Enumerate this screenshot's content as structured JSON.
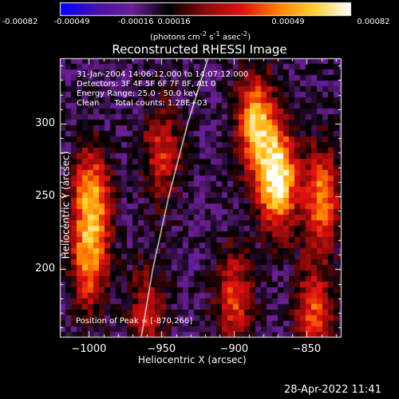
{
  "colorbar": {
    "ticks": [
      "-0.00082",
      "-0.00049",
      "-0.00016",
      "0.00016",
      "0.00049",
      "0.00082"
    ],
    "units_text": "(photons cm",
    "units_exp1": "-2",
    "units_mid": " s",
    "units_exp2": "-1",
    "units_mid2": " asec",
    "units_exp3": "-2",
    "units_end": ")"
  },
  "info": {
    "line1": "31-Jan-2004 14:06:12.000 to 14:07:12.000",
    "line2": "Detectors: 3F 4F 5F 6F 7F 8F, Att 0",
    "line3": "Energy Range: 25.0 - 50.0 keV",
    "line4": "Clean      Total counts: 1.28E+03",
    "peak": "Position of Peak = [-870,266]"
  },
  "timestamp": "28-Apr-2022 11:41",
  "chart_data": {
    "type": "heatmap",
    "title": "Reconstructed RHESSI Image",
    "xlabel": "Heliocentric X (arcsec)",
    "ylabel": "Heliocentric Y (arcsec)",
    "xlim": [
      -1020,
      -826
    ],
    "ylim": [
      153,
      345
    ],
    "xticks": [
      -1000,
      -950,
      -900,
      -850
    ],
    "yticks": [
      200,
      250,
      300
    ],
    "colorbar_range": [
      -0.00082,
      0.00082
    ],
    "peak_position": [
      -870,
      266
    ],
    "colormap": [
      "#0000ff",
      "#4a10b0",
      "#6a2090",
      "#000000",
      "#8a0a0a",
      "#e01010",
      "#ff8000",
      "#ffd030",
      "#ffffff"
    ],
    "bright_features": [
      {
        "x": -998,
        "y": 250,
        "level": 0.7
      },
      {
        "x": -1000,
        "y": 205,
        "level": 0.6
      },
      {
        "x": -950,
        "y": 280,
        "level": 0.45
      },
      {
        "x": -960,
        "y": 170,
        "level": 0.4
      },
      {
        "x": -870,
        "y": 262,
        "level": 1.0
      },
      {
        "x": -885,
        "y": 300,
        "level": 0.8
      },
      {
        "x": -840,
        "y": 250,
        "level": 0.65
      },
      {
        "x": -900,
        "y": 180,
        "level": 0.5
      },
      {
        "x": -845,
        "y": 170,
        "level": 0.55
      }
    ],
    "limb_curve": [
      [
        -964,
        153
      ],
      [
        -956,
        200
      ],
      [
        -945,
        250
      ],
      [
        -932,
        300
      ],
      [
        -918,
        345
      ]
    ]
  }
}
